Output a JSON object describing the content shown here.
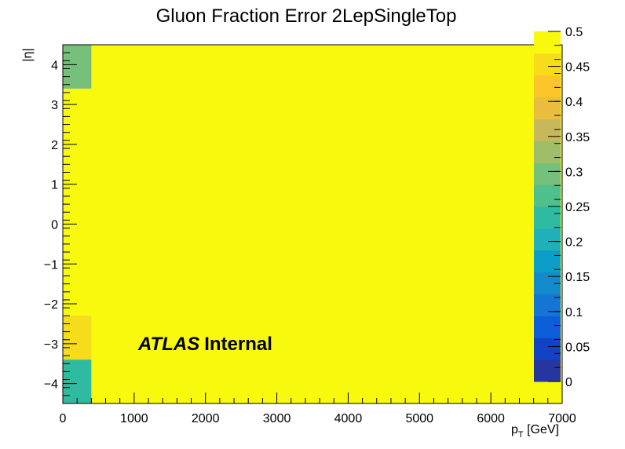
{
  "chart_data": {
    "type": "heatmap",
    "title": "Gluon Fraction Error 2LepSingleTop",
    "xlabel": "p_T [GeV]",
    "ylabel": "|η|",
    "xlim": [
      0,
      7000
    ],
    "ylim": [
      -4.5,
      4.5
    ],
    "zlim": [
      0,
      0.5
    ],
    "x_ticks": [
      "0",
      "1000",
      "2000",
      "3000",
      "4000",
      "5000",
      "6000",
      "7000"
    ],
    "y_ticks": [
      "−4",
      "−3",
      "−2",
      "−1",
      "0",
      "1",
      "2",
      "3",
      "4"
    ],
    "z_ticks": [
      "0",
      "0.05",
      "0.1",
      "0.15",
      "0.2",
      "0.25",
      "0.3",
      "0.35",
      "0.4",
      "0.45",
      "0.5"
    ],
    "palette": [
      "#27359e",
      "#1144c4",
      "#0d5ed9",
      "#1376d4",
      "#138acb",
      "#0a9ec8",
      "#1fb0ba",
      "#2fbba1",
      "#4fbf8c",
      "#76c07c",
      "#a0bd69",
      "#c8b85c",
      "#ebbc3d",
      "#fdc52a",
      "#f7dc1c",
      "#f9f90e"
    ],
    "cells": [
      {
        "x": [
          0,
          400
        ],
        "y": [
          3.4,
          4.5
        ],
        "z": 0.31
      },
      {
        "x": [
          0,
          400
        ],
        "y": [
          -3.4,
          -2.3
        ],
        "z": 0.46
      },
      {
        "x": [
          0,
          400
        ],
        "y": [
          -4.5,
          -3.4
        ],
        "z": 0.22
      }
    ],
    "background_z": 0.5,
    "label": {
      "bold_italic": "ATLAS",
      "text": "Internal"
    }
  }
}
